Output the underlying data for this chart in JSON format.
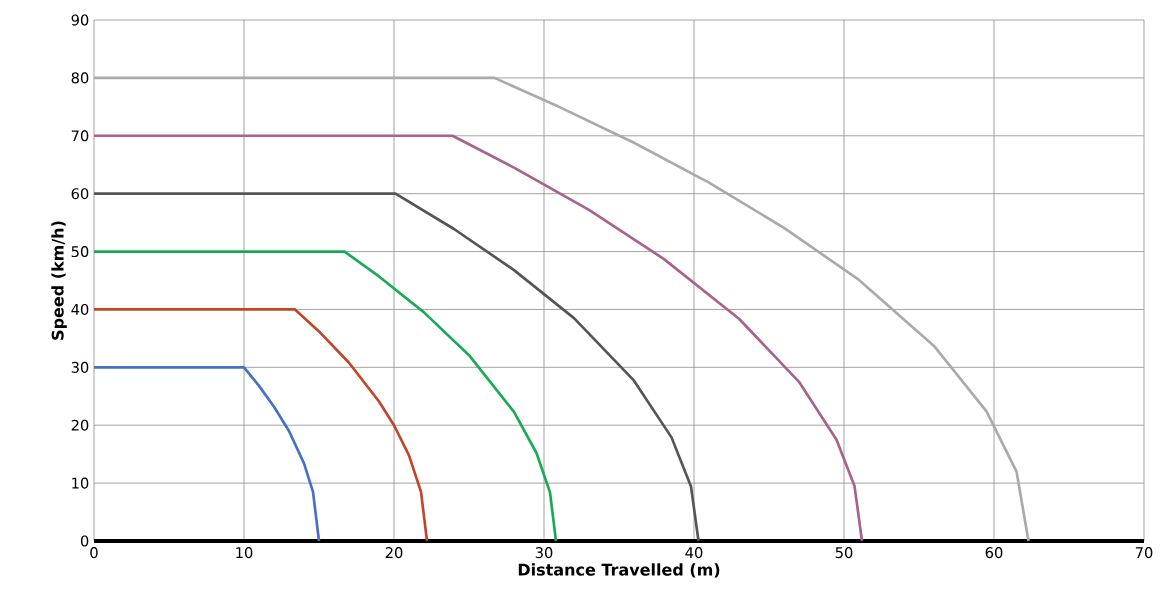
{
  "chart_data": {
    "type": "line",
    "xlabel": "Distance Travelled (m)",
    "ylabel": "Speed (km/h)",
    "xlim": [
      0,
      70
    ],
    "ylim": [
      0,
      90
    ],
    "xticks": [
      0,
      10,
      20,
      30,
      40,
      50,
      60,
      70
    ],
    "yticks": [
      0,
      10,
      20,
      30,
      40,
      50,
      60,
      70,
      80,
      90
    ],
    "grid": true,
    "marker": "none",
    "line_style": "solid",
    "series": [
      {
        "color": "#4472c4",
        "x": [
          0,
          10,
          11,
          12,
          13,
          14,
          14.6,
          15
        ],
        "values": [
          30,
          30,
          26.8,
          23.2,
          19.0,
          13.4,
          8.5,
          0
        ]
      },
      {
        "color": "#c0462a",
        "x": [
          0,
          13.4,
          15,
          17,
          19,
          20,
          21,
          21.8,
          22.2
        ],
        "values": [
          40,
          40,
          36.2,
          30.8,
          24.1,
          20.0,
          14.8,
          8.5,
          0
        ]
      },
      {
        "color": "#1aaa55",
        "x": [
          0,
          16.7,
          19,
          22,
          25,
          28,
          29.5,
          30.4,
          30.8
        ],
        "values": [
          50,
          50,
          45.7,
          39.5,
          32.1,
          22.3,
          15.2,
          8.4,
          0
        ]
      },
      {
        "color": "#555555",
        "x": [
          0,
          20.1,
          24,
          28,
          32,
          36,
          38.5,
          39.8,
          40.3
        ],
        "values": [
          60,
          60,
          53.9,
          46.8,
          38.5,
          27.7,
          17.9,
          9.4,
          0
        ]
      },
      {
        "color": "#a8628e",
        "x": [
          0,
          23.9,
          28,
          33,
          38,
          43,
          47,
          49.5,
          50.7,
          51.2
        ],
        "values": [
          70,
          70,
          64.5,
          57.2,
          48.7,
          38.4,
          27.5,
          17.5,
          9.5,
          0
        ]
      },
      {
        "color": "#aaaaaa",
        "x": [
          0,
          26.7,
          31,
          36,
          41,
          46,
          51,
          56,
          59.5,
          61.5,
          62.3
        ],
        "values": [
          80,
          80,
          75.0,
          68.8,
          61.9,
          54.1,
          45.1,
          33.7,
          22.4,
          12.0,
          0
        ]
      }
    ]
  }
}
